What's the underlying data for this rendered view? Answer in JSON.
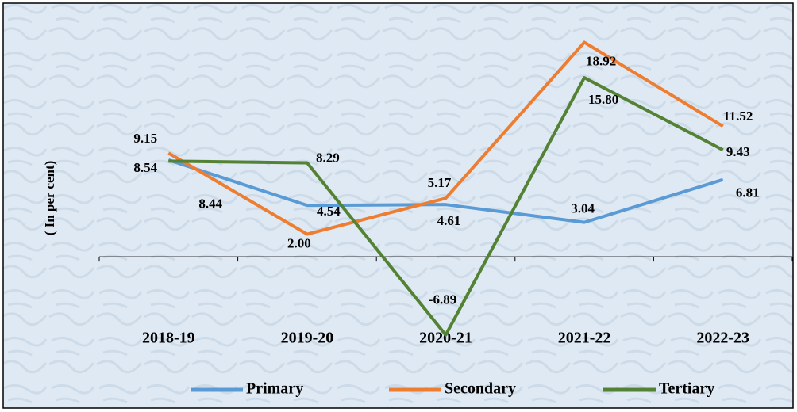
{
  "chart_data": {
    "type": "line",
    "y_label": "( In per cent)",
    "categories": [
      "2018-19",
      "2019-20",
      "2020-21",
      "2021-22",
      "2022-23"
    ],
    "series": [
      {
        "name": "Primary",
        "color": "#5b9bd5",
        "values": [
          8.54,
          4.54,
          4.61,
          3.04,
          6.81
        ]
      },
      {
        "name": "Secondary",
        "color": "#ed7d31",
        "values": [
          9.15,
          2.0,
          5.17,
          18.92,
          11.52
        ],
        "value_labels": [
          "9.15",
          "2.00",
          "5.17",
          "18.92",
          "11.52"
        ]
      },
      {
        "name": "Tertiary",
        "color": "#548235",
        "values": [
          8.44,
          8.29,
          -6.89,
          15.8,
          9.43
        ],
        "value_labels": [
          "8.44",
          "8.29",
          "-6.89",
          "15.80",
          "9.43"
        ]
      }
    ],
    "ylim": [
      -8,
      20
    ]
  }
}
